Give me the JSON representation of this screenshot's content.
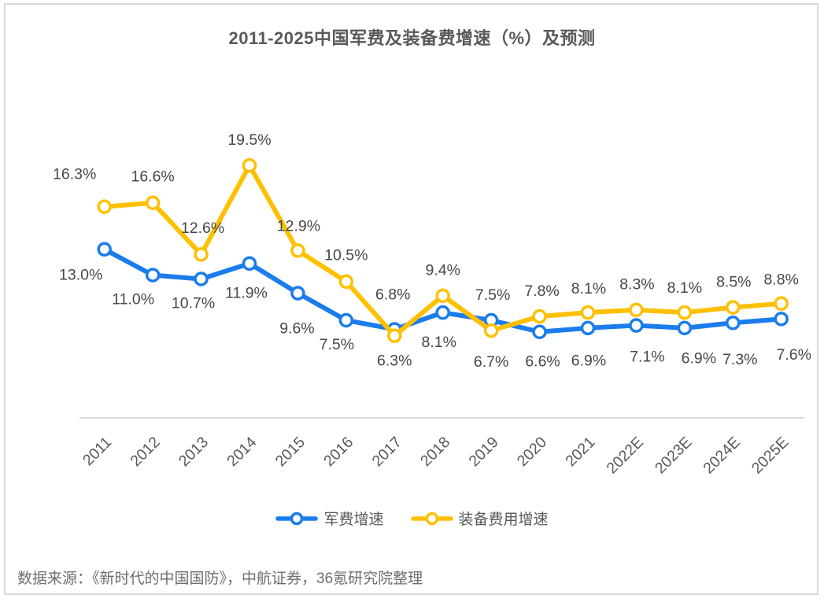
{
  "title": "2011-2025中国军费及装备费增速（%）及预测",
  "source": "数据来源：《新时代的中国国防》，中航证券，36氪研究院整理",
  "chart_data": {
    "type": "line",
    "title": "2011-2025中国军费及装备费增速（%）及预测",
    "categories": [
      "2011",
      "2012",
      "2013",
      "2014",
      "2015",
      "2016",
      "2017",
      "2018",
      "2019",
      "2020",
      "2021",
      "2022E",
      "2023E",
      "2024E",
      "2025E"
    ],
    "series": [
      {
        "name": "军费增速",
        "color": "#1B7CEB",
        "values": [
          13.0,
          11.0,
          10.7,
          11.9,
          9.6,
          7.5,
          6.8,
          8.1,
          7.5,
          6.6,
          6.9,
          7.1,
          6.9,
          7.3,
          7.6
        ],
        "label_offsets": [
          [
            -30,
            32
          ],
          [
            -25,
            30
          ],
          [
            -10,
            30
          ],
          [
            -4,
            37
          ],
          [
            -1,
            44
          ],
          [
            -12,
            30
          ],
          [
            -2,
            -45
          ],
          [
            -5,
            37
          ],
          [
            2,
            -33
          ],
          [
            4,
            37
          ],
          [
            1,
            41
          ],
          [
            14,
            39
          ],
          [
            18,
            38
          ],
          [
            9,
            46
          ],
          [
            16,
            45
          ]
        ]
      },
      {
        "name": "装备费用增速",
        "color": "#FFC000",
        "values": [
          16.3,
          16.6,
          12.6,
          19.5,
          12.9,
          10.5,
          6.3,
          9.4,
          6.7,
          7.8,
          8.1,
          8.3,
          8.1,
          8.5,
          8.8
        ],
        "label_offsets": [
          [
            -38,
            -42
          ],
          [
            0,
            -34
          ],
          [
            2,
            -34
          ],
          [
            0,
            -33
          ],
          [
            1,
            -32
          ],
          [
            0,
            -34
          ],
          [
            0,
            31
          ],
          [
            0,
            -33
          ],
          [
            0,
            39
          ],
          [
            3,
            -33
          ],
          [
            1,
            -31
          ],
          [
            1,
            -33
          ],
          [
            0,
            -32
          ],
          [
            1,
            -33
          ],
          [
            0,
            -31
          ]
        ]
      }
    ],
    "xlabel": "",
    "ylabel": "",
    "ylim": [
      0,
      27
    ],
    "grid": false,
    "y_axis_visible": false,
    "legend_position": "bottom",
    "label_format": "{value}%",
    "axis_line_color": "#D9D9D9",
    "label_color": "#474747",
    "tick_color": "#595959",
    "marker": "circle-open"
  }
}
